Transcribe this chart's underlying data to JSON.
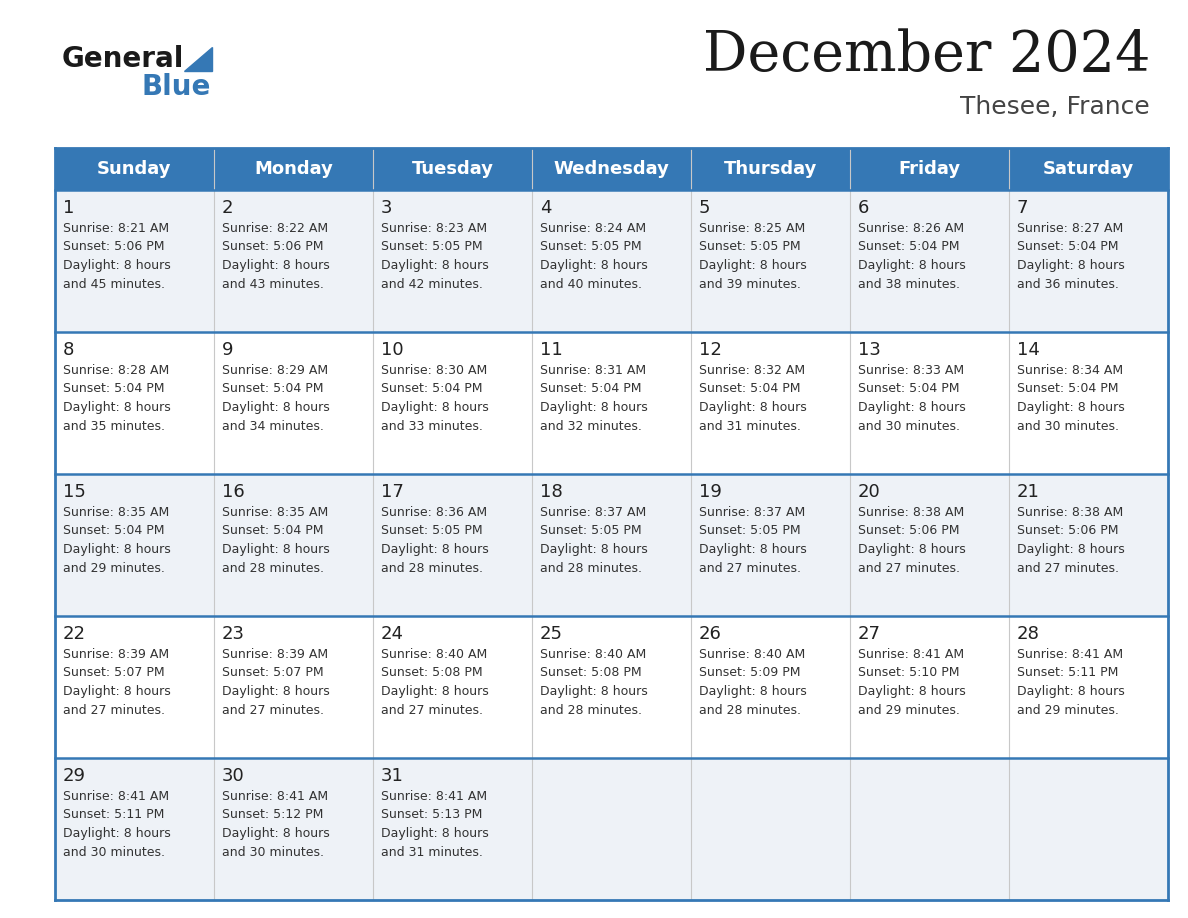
{
  "title": "December 2024",
  "subtitle": "Thesee, France",
  "header_color": "#3578b5",
  "header_text_color": "#ffffff",
  "days_of_week": [
    "Sunday",
    "Monday",
    "Tuesday",
    "Wednesday",
    "Thursday",
    "Friday",
    "Saturday"
  ],
  "weeks": [
    [
      {
        "day": 1,
        "sunrise": "8:21 AM",
        "sunset": "5:06 PM",
        "daylight_hours": 8,
        "daylight_minutes": 45
      },
      {
        "day": 2,
        "sunrise": "8:22 AM",
        "sunset": "5:06 PM",
        "daylight_hours": 8,
        "daylight_minutes": 43
      },
      {
        "day": 3,
        "sunrise": "8:23 AM",
        "sunset": "5:05 PM",
        "daylight_hours": 8,
        "daylight_minutes": 42
      },
      {
        "day": 4,
        "sunrise": "8:24 AM",
        "sunset": "5:05 PM",
        "daylight_hours": 8,
        "daylight_minutes": 40
      },
      {
        "day": 5,
        "sunrise": "8:25 AM",
        "sunset": "5:05 PM",
        "daylight_hours": 8,
        "daylight_minutes": 39
      },
      {
        "day": 6,
        "sunrise": "8:26 AM",
        "sunset": "5:04 PM",
        "daylight_hours": 8,
        "daylight_minutes": 38
      },
      {
        "day": 7,
        "sunrise": "8:27 AM",
        "sunset": "5:04 PM",
        "daylight_hours": 8,
        "daylight_minutes": 36
      }
    ],
    [
      {
        "day": 8,
        "sunrise": "8:28 AM",
        "sunset": "5:04 PM",
        "daylight_hours": 8,
        "daylight_minutes": 35
      },
      {
        "day": 9,
        "sunrise": "8:29 AM",
        "sunset": "5:04 PM",
        "daylight_hours": 8,
        "daylight_minutes": 34
      },
      {
        "day": 10,
        "sunrise": "8:30 AM",
        "sunset": "5:04 PM",
        "daylight_hours": 8,
        "daylight_minutes": 33
      },
      {
        "day": 11,
        "sunrise": "8:31 AM",
        "sunset": "5:04 PM",
        "daylight_hours": 8,
        "daylight_minutes": 32
      },
      {
        "day": 12,
        "sunrise": "8:32 AM",
        "sunset": "5:04 PM",
        "daylight_hours": 8,
        "daylight_minutes": 31
      },
      {
        "day": 13,
        "sunrise": "8:33 AM",
        "sunset": "5:04 PM",
        "daylight_hours": 8,
        "daylight_minutes": 30
      },
      {
        "day": 14,
        "sunrise": "8:34 AM",
        "sunset": "5:04 PM",
        "daylight_hours": 8,
        "daylight_minutes": 30
      }
    ],
    [
      {
        "day": 15,
        "sunrise": "8:35 AM",
        "sunset": "5:04 PM",
        "daylight_hours": 8,
        "daylight_minutes": 29
      },
      {
        "day": 16,
        "sunrise": "8:35 AM",
        "sunset": "5:04 PM",
        "daylight_hours": 8,
        "daylight_minutes": 28
      },
      {
        "day": 17,
        "sunrise": "8:36 AM",
        "sunset": "5:05 PM",
        "daylight_hours": 8,
        "daylight_minutes": 28
      },
      {
        "day": 18,
        "sunrise": "8:37 AM",
        "sunset": "5:05 PM",
        "daylight_hours": 8,
        "daylight_minutes": 28
      },
      {
        "day": 19,
        "sunrise": "8:37 AM",
        "sunset": "5:05 PM",
        "daylight_hours": 8,
        "daylight_minutes": 27
      },
      {
        "day": 20,
        "sunrise": "8:38 AM",
        "sunset": "5:06 PM",
        "daylight_hours": 8,
        "daylight_minutes": 27
      },
      {
        "day": 21,
        "sunrise": "8:38 AM",
        "sunset": "5:06 PM",
        "daylight_hours": 8,
        "daylight_minutes": 27
      }
    ],
    [
      {
        "day": 22,
        "sunrise": "8:39 AM",
        "sunset": "5:07 PM",
        "daylight_hours": 8,
        "daylight_minutes": 27
      },
      {
        "day": 23,
        "sunrise": "8:39 AM",
        "sunset": "5:07 PM",
        "daylight_hours": 8,
        "daylight_minutes": 27
      },
      {
        "day": 24,
        "sunrise": "8:40 AM",
        "sunset": "5:08 PM",
        "daylight_hours": 8,
        "daylight_minutes": 27
      },
      {
        "day": 25,
        "sunrise": "8:40 AM",
        "sunset": "5:08 PM",
        "daylight_hours": 8,
        "daylight_minutes": 28
      },
      {
        "day": 26,
        "sunrise": "8:40 AM",
        "sunset": "5:09 PM",
        "daylight_hours": 8,
        "daylight_minutes": 28
      },
      {
        "day": 27,
        "sunrise": "8:41 AM",
        "sunset": "5:10 PM",
        "daylight_hours": 8,
        "daylight_minutes": 29
      },
      {
        "day": 28,
        "sunrise": "8:41 AM",
        "sunset": "5:11 PM",
        "daylight_hours": 8,
        "daylight_minutes": 29
      }
    ],
    [
      {
        "day": 29,
        "sunrise": "8:41 AM",
        "sunset": "5:11 PM",
        "daylight_hours": 8,
        "daylight_minutes": 30
      },
      {
        "day": 30,
        "sunrise": "8:41 AM",
        "sunset": "5:12 PM",
        "daylight_hours": 8,
        "daylight_minutes": 30
      },
      {
        "day": 31,
        "sunrise": "8:41 AM",
        "sunset": "5:13 PM",
        "daylight_hours": 8,
        "daylight_minutes": 31
      },
      null,
      null,
      null,
      null
    ]
  ],
  "row_bg_colors": [
    "#eef2f7",
    "#ffffff"
  ],
  "cell_text_color": "#333333",
  "cell_day_color": "#222222",
  "border_color": "#3578b5",
  "thin_border_color": "#c8c8c8",
  "background_color": "#ffffff",
  "logo_general_color": "#1a1a1a",
  "logo_blue_color": "#3578b5",
  "logo_triangle_color": "#3578b5"
}
